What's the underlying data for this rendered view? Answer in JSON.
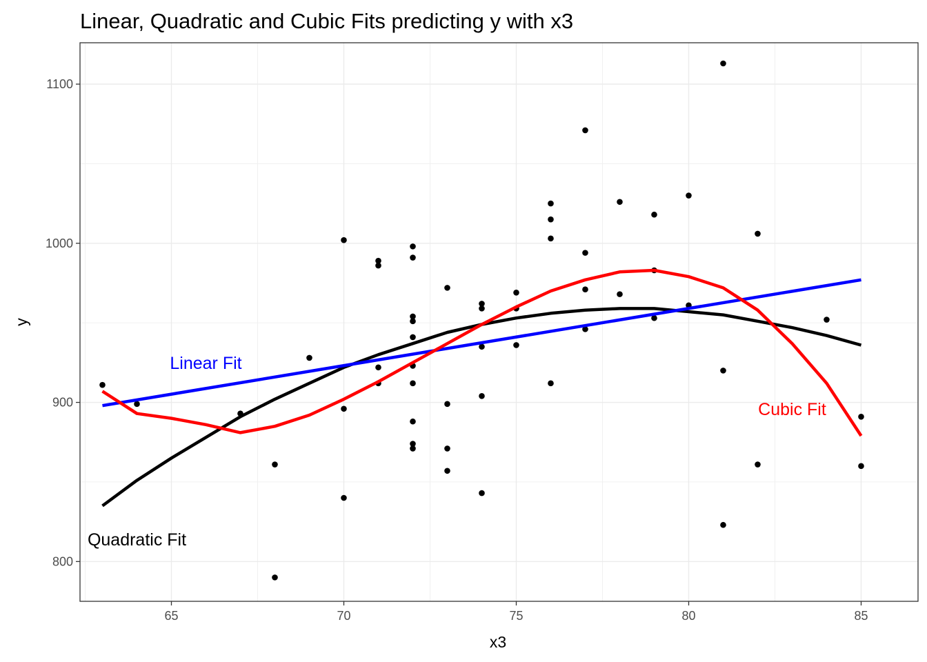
{
  "chart_data": {
    "type": "scatter",
    "title": "Linear, Quadratic and Cubic Fits predicting y with x3",
    "xlabel": "x3",
    "ylabel": "y",
    "xlim": [
      62.35,
      86.65
    ],
    "ylim": [
      775,
      1126
    ],
    "xticks": [
      65,
      70,
      75,
      80,
      85
    ],
    "yticks": [
      800,
      1000,
      1100
    ],
    "x_minor_grid": [
      62.5,
      67.5,
      72.5,
      77.5,
      82.5
    ],
    "y_minor_grid": [
      850,
      950,
      1050
    ],
    "grid": true,
    "points": [
      [
        63,
        911
      ],
      [
        64,
        899
      ],
      [
        67,
        893
      ],
      [
        68,
        861
      ],
      [
        68,
        790
      ],
      [
        69,
        928
      ],
      [
        70,
        1002
      ],
      [
        70,
        896
      ],
      [
        70,
        840
      ],
      [
        71,
        989
      ],
      [
        71,
        986
      ],
      [
        71,
        922
      ],
      [
        71,
        912
      ],
      [
        72,
        998
      ],
      [
        72,
        991
      ],
      [
        72,
        954
      ],
      [
        72,
        951
      ],
      [
        72,
        941
      ],
      [
        72,
        923
      ],
      [
        72,
        912
      ],
      [
        72,
        888
      ],
      [
        72,
        874
      ],
      [
        72,
        871
      ],
      [
        73,
        972
      ],
      [
        73,
        899
      ],
      [
        73,
        871
      ],
      [
        73,
        857
      ],
      [
        74,
        962
      ],
      [
        74,
        959
      ],
      [
        74,
        935
      ],
      [
        74,
        904
      ],
      [
        74,
        843
      ],
      [
        75,
        969
      ],
      [
        75,
        959
      ],
      [
        75,
        936
      ],
      [
        76,
        1025
      ],
      [
        76,
        1015
      ],
      [
        76,
        1003
      ],
      [
        76,
        912
      ],
      [
        77,
        1071
      ],
      [
        77,
        994
      ],
      [
        77,
        971
      ],
      [
        77,
        946
      ],
      [
        78,
        1026
      ],
      [
        78,
        968
      ],
      [
        79,
        1018
      ],
      [
        79,
        983
      ],
      [
        79,
        953
      ],
      [
        80,
        1030
      ],
      [
        80,
        961
      ],
      [
        81,
        1113
      ],
      [
        81,
        920
      ],
      [
        81,
        823
      ],
      [
        82,
        1006
      ],
      [
        82,
        861
      ],
      [
        84,
        952
      ],
      [
        85,
        891
      ],
      [
        85,
        860
      ]
    ],
    "series": [
      {
        "name": "Linear Fit",
        "color": "#0000ff",
        "x": [
          63,
          85
        ],
        "y": [
          898,
          977
        ]
      },
      {
        "name": "Quadratic Fit",
        "color": "#000000",
        "x": [
          63,
          64,
          65,
          66,
          67,
          68,
          69,
          70,
          71,
          72,
          73,
          74,
          75,
          76,
          77,
          78,
          79,
          80,
          81,
          82,
          83,
          84,
          85
        ],
        "y": [
          835,
          851,
          865,
          878,
          891,
          902,
          912,
          922,
          930,
          937,
          944,
          949,
          953,
          956,
          958,
          959,
          959,
          957,
          955,
          951,
          947,
          942,
          936
        ]
      },
      {
        "name": "Cubic Fit",
        "color": "#ff0000",
        "x": [
          63,
          64,
          65,
          66,
          67,
          68,
          69,
          70,
          71,
          72,
          73,
          74,
          75,
          76,
          77,
          78,
          79,
          80,
          81,
          82,
          83,
          84,
          85
        ],
        "y": [
          907,
          893,
          890,
          886,
          881,
          885,
          892,
          902,
          913,
          925,
          937,
          949,
          960,
          970,
          977,
          982,
          983,
          979,
          972,
          958,
          937,
          912,
          879
        ]
      }
    ],
    "annotations": [
      {
        "text": "Linear Fit",
        "x": 66.0,
        "y": 925,
        "color": "#0000ff"
      },
      {
        "text": "Quadratic Fit",
        "x": 64.0,
        "y": 814,
        "color": "#000000"
      },
      {
        "text": "Cubic Fit",
        "x": 83.0,
        "y": 896,
        "color": "#ff0000"
      }
    ]
  }
}
